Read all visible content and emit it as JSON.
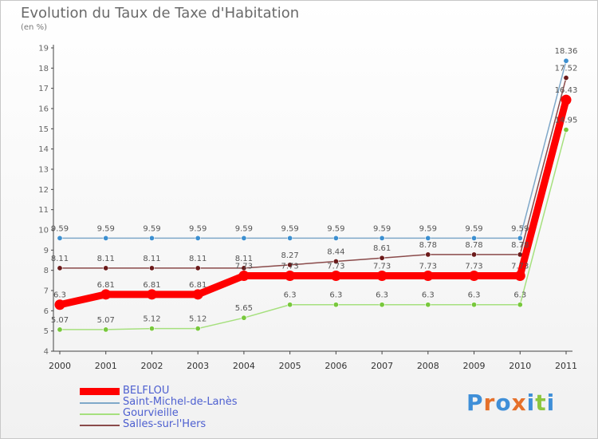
{
  "header": {
    "title": "Evolution du Taux de Taxe d'Habitation",
    "unit": "(en %)"
  },
  "brand": {
    "text": "Proxiti"
  },
  "chart_data": {
    "type": "line",
    "title": "Evolution du Taux de Taxe d'Habitation",
    "ylabel": "(en %)",
    "xlabel": "",
    "ylim": [
      4,
      19
    ],
    "yticks": [
      4,
      5,
      6,
      7,
      8,
      9,
      10,
      11,
      12,
      13,
      14,
      15,
      16,
      17,
      18,
      19
    ],
    "grid": false,
    "legend_position": "bottom-left",
    "x": [
      "2000",
      "2001",
      "2002",
      "2003",
      "2004",
      "2005",
      "2006",
      "2007",
      "2008",
      "2009",
      "2010",
      "2011"
    ],
    "series": [
      {
        "name": "Saint-Michel-de-Lanès",
        "color": "#7fa8c9",
        "marker_color": "#3c8fd0",
        "values": [
          9.59,
          9.59,
          9.59,
          9.59,
          9.59,
          9.59,
          9.59,
          9.59,
          9.59,
          9.59,
          9.59,
          18.36
        ],
        "labels": [
          "9.59",
          "9.59",
          "9.59",
          "9.59",
          "9.59",
          "9.59",
          "9.59",
          "9.59",
          "9.59",
          "9.59",
          "9.59",
          "18.36"
        ]
      },
      {
        "name": "Salles-sur-l'Hers",
        "color": "#8a4a4a",
        "marker_color": "#6b1a1a",
        "values": [
          8.11,
          8.11,
          8.11,
          8.11,
          8.11,
          8.27,
          8.44,
          8.61,
          8.78,
          8.78,
          8.78,
          17.52
        ],
        "labels": [
          "8.11",
          "8.11",
          "8.11",
          "8.11",
          "8.11",
          "8.27",
          "8.44",
          "8.61",
          "8.78",
          "8.78",
          "8.78",
          "17.52"
        ]
      },
      {
        "name": "Gourvieille",
        "color": "#a6e07e",
        "marker_color": "#78c83c",
        "values": [
          5.07,
          5.07,
          5.12,
          5.12,
          5.65,
          6.3,
          6.3,
          6.3,
          6.3,
          6.3,
          6.3,
          14.95
        ],
        "labels": [
          "5.07",
          "5.07",
          "5.12",
          "5.12",
          "5.65",
          "6.3",
          "6.3",
          "6.3",
          "6.3",
          "6.3",
          "6.3",
          "14.95"
        ]
      },
      {
        "name": "BELFLOU",
        "color": "#ff0000",
        "marker_color": "#ff0000",
        "values": [
          6.3,
          6.81,
          6.81,
          6.81,
          7.73,
          7.73,
          7.73,
          7.73,
          7.73,
          7.73,
          7.73,
          16.43
        ],
        "labels": [
          "6.3",
          "6.81",
          "6.81",
          "6.81",
          "7.73",
          "7.73",
          "7.73",
          "7.73",
          "7.73",
          "7.73",
          "7.73",
          "16.43"
        ]
      }
    ],
    "legend_order": [
      "BELFLOU",
      "Saint-Michel-de-Lanès",
      "Gourvieille",
      "Salles-sur-l'Hers"
    ]
  }
}
